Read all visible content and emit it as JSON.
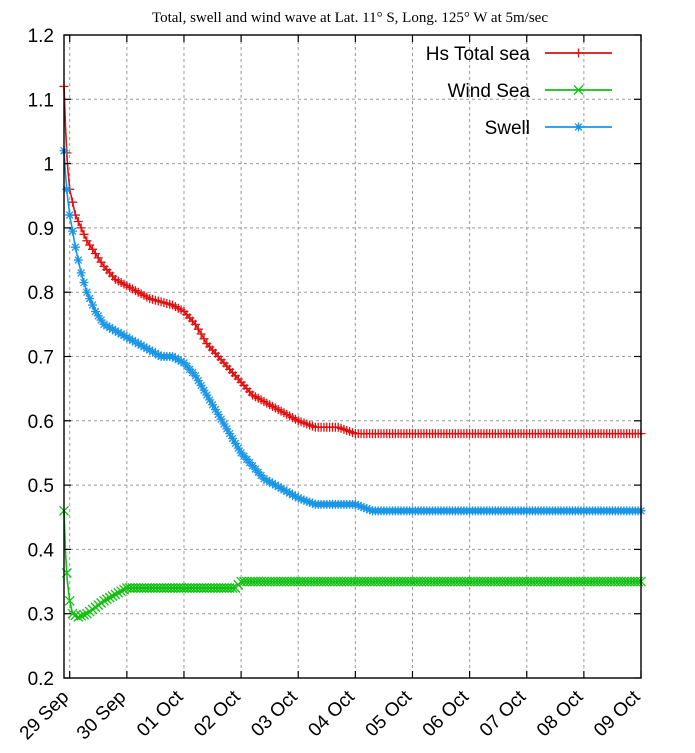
{
  "chart_data": {
    "type": "line",
    "title": "Total, swell and wind wave at Lat. 11° S, Long. 125° W at 5m/sec",
    "xlabel": "",
    "ylabel": "",
    "ylim": [
      0.2,
      1.2
    ],
    "yticks": [
      "0.2",
      "0.3",
      "0.4",
      "0.5",
      "0.6",
      "0.7",
      "0.8",
      "0.9",
      "1",
      "1.1",
      "1.2"
    ],
    "xlim": [
      -0.1,
      10
    ],
    "xticks": [
      {
        "label": "29 Sep",
        "x": 0
      },
      {
        "label": "30 Sep",
        "x": 1
      },
      {
        "label": "01 Oct",
        "x": 2
      },
      {
        "label": "02 Oct",
        "x": 3
      },
      {
        "label": "03 Oct",
        "x": 4
      },
      {
        "label": "04 Oct",
        "x": 5
      },
      {
        "label": "05 Oct",
        "x": 6
      },
      {
        "label": "06 Oct",
        "x": 7
      },
      {
        "label": "07 Oct",
        "x": 8
      },
      {
        "label": "08 Oct",
        "x": 9
      },
      {
        "label": "09 Oct",
        "x": 10
      }
    ],
    "grid": true,
    "legend_position": "top-right",
    "series": [
      {
        "name": "Hs Total sea",
        "color": "#e01010",
        "marker": "plus",
        "points": [
          [
            -0.1,
            1.12
          ],
          [
            -0.07,
            1.05
          ],
          [
            -0.04,
            1.0
          ],
          [
            0.0,
            0.96
          ],
          [
            0.1,
            0.92
          ],
          [
            0.2,
            0.9
          ],
          [
            0.3,
            0.88
          ],
          [
            0.45,
            0.86
          ],
          [
            0.6,
            0.84
          ],
          [
            0.8,
            0.82
          ],
          [
            1.0,
            0.81
          ],
          [
            1.2,
            0.8
          ],
          [
            1.4,
            0.79
          ],
          [
            1.6,
            0.785
          ],
          [
            1.8,
            0.78
          ],
          [
            2.0,
            0.77
          ],
          [
            2.2,
            0.75
          ],
          [
            2.4,
            0.72
          ],
          [
            2.6,
            0.7
          ],
          [
            2.8,
            0.68
          ],
          [
            3.0,
            0.66
          ],
          [
            3.2,
            0.64
          ],
          [
            3.4,
            0.63
          ],
          [
            3.6,
            0.62
          ],
          [
            3.8,
            0.61
          ],
          [
            4.0,
            0.6
          ],
          [
            4.3,
            0.59
          ],
          [
            4.7,
            0.59
          ],
          [
            5.0,
            0.58
          ],
          [
            6.0,
            0.58
          ],
          [
            7.0,
            0.58
          ],
          [
            8.0,
            0.58
          ],
          [
            9.0,
            0.58
          ],
          [
            10.0,
            0.58
          ]
        ]
      },
      {
        "name": "Wind Sea",
        "color": "#10c010",
        "marker": "cross",
        "points": [
          [
            -0.1,
            0.46
          ],
          [
            -0.07,
            0.39
          ],
          [
            -0.04,
            0.35
          ],
          [
            0.0,
            0.32
          ],
          [
            0.05,
            0.3
          ],
          [
            0.15,
            0.295
          ],
          [
            0.3,
            0.3
          ],
          [
            0.45,
            0.31
          ],
          [
            0.6,
            0.32
          ],
          [
            0.8,
            0.33
          ],
          [
            1.0,
            0.34
          ],
          [
            1.5,
            0.34
          ],
          [
            2.0,
            0.34
          ],
          [
            2.5,
            0.34
          ],
          [
            2.9,
            0.34
          ],
          [
            3.0,
            0.35
          ],
          [
            4.0,
            0.35
          ],
          [
            5.0,
            0.35
          ],
          [
            6.0,
            0.35
          ],
          [
            7.0,
            0.35
          ],
          [
            8.0,
            0.35
          ],
          [
            9.0,
            0.35
          ],
          [
            10.0,
            0.35
          ]
        ]
      },
      {
        "name": "Swell",
        "color": "#1a96e8",
        "marker": "star",
        "points": [
          [
            -0.1,
            1.02
          ],
          [
            -0.07,
            0.98
          ],
          [
            -0.04,
            0.95
          ],
          [
            0.0,
            0.92
          ],
          [
            0.1,
            0.87
          ],
          [
            0.2,
            0.83
          ],
          [
            0.3,
            0.8
          ],
          [
            0.45,
            0.77
          ],
          [
            0.6,
            0.75
          ],
          [
            0.8,
            0.74
          ],
          [
            1.0,
            0.73
          ],
          [
            1.2,
            0.72
          ],
          [
            1.4,
            0.71
          ],
          [
            1.6,
            0.7
          ],
          [
            1.8,
            0.7
          ],
          [
            2.0,
            0.69
          ],
          [
            2.2,
            0.67
          ],
          [
            2.4,
            0.64
          ],
          [
            2.6,
            0.61
          ],
          [
            2.8,
            0.58
          ],
          [
            3.0,
            0.55
          ],
          [
            3.2,
            0.53
          ],
          [
            3.4,
            0.51
          ],
          [
            3.6,
            0.5
          ],
          [
            3.8,
            0.49
          ],
          [
            4.0,
            0.48
          ],
          [
            4.3,
            0.47
          ],
          [
            5.0,
            0.47
          ],
          [
            5.3,
            0.46
          ],
          [
            6.0,
            0.46
          ],
          [
            7.0,
            0.46
          ],
          [
            8.0,
            0.46
          ],
          [
            9.0,
            0.46
          ],
          [
            10.0,
            0.46
          ]
        ]
      }
    ]
  }
}
